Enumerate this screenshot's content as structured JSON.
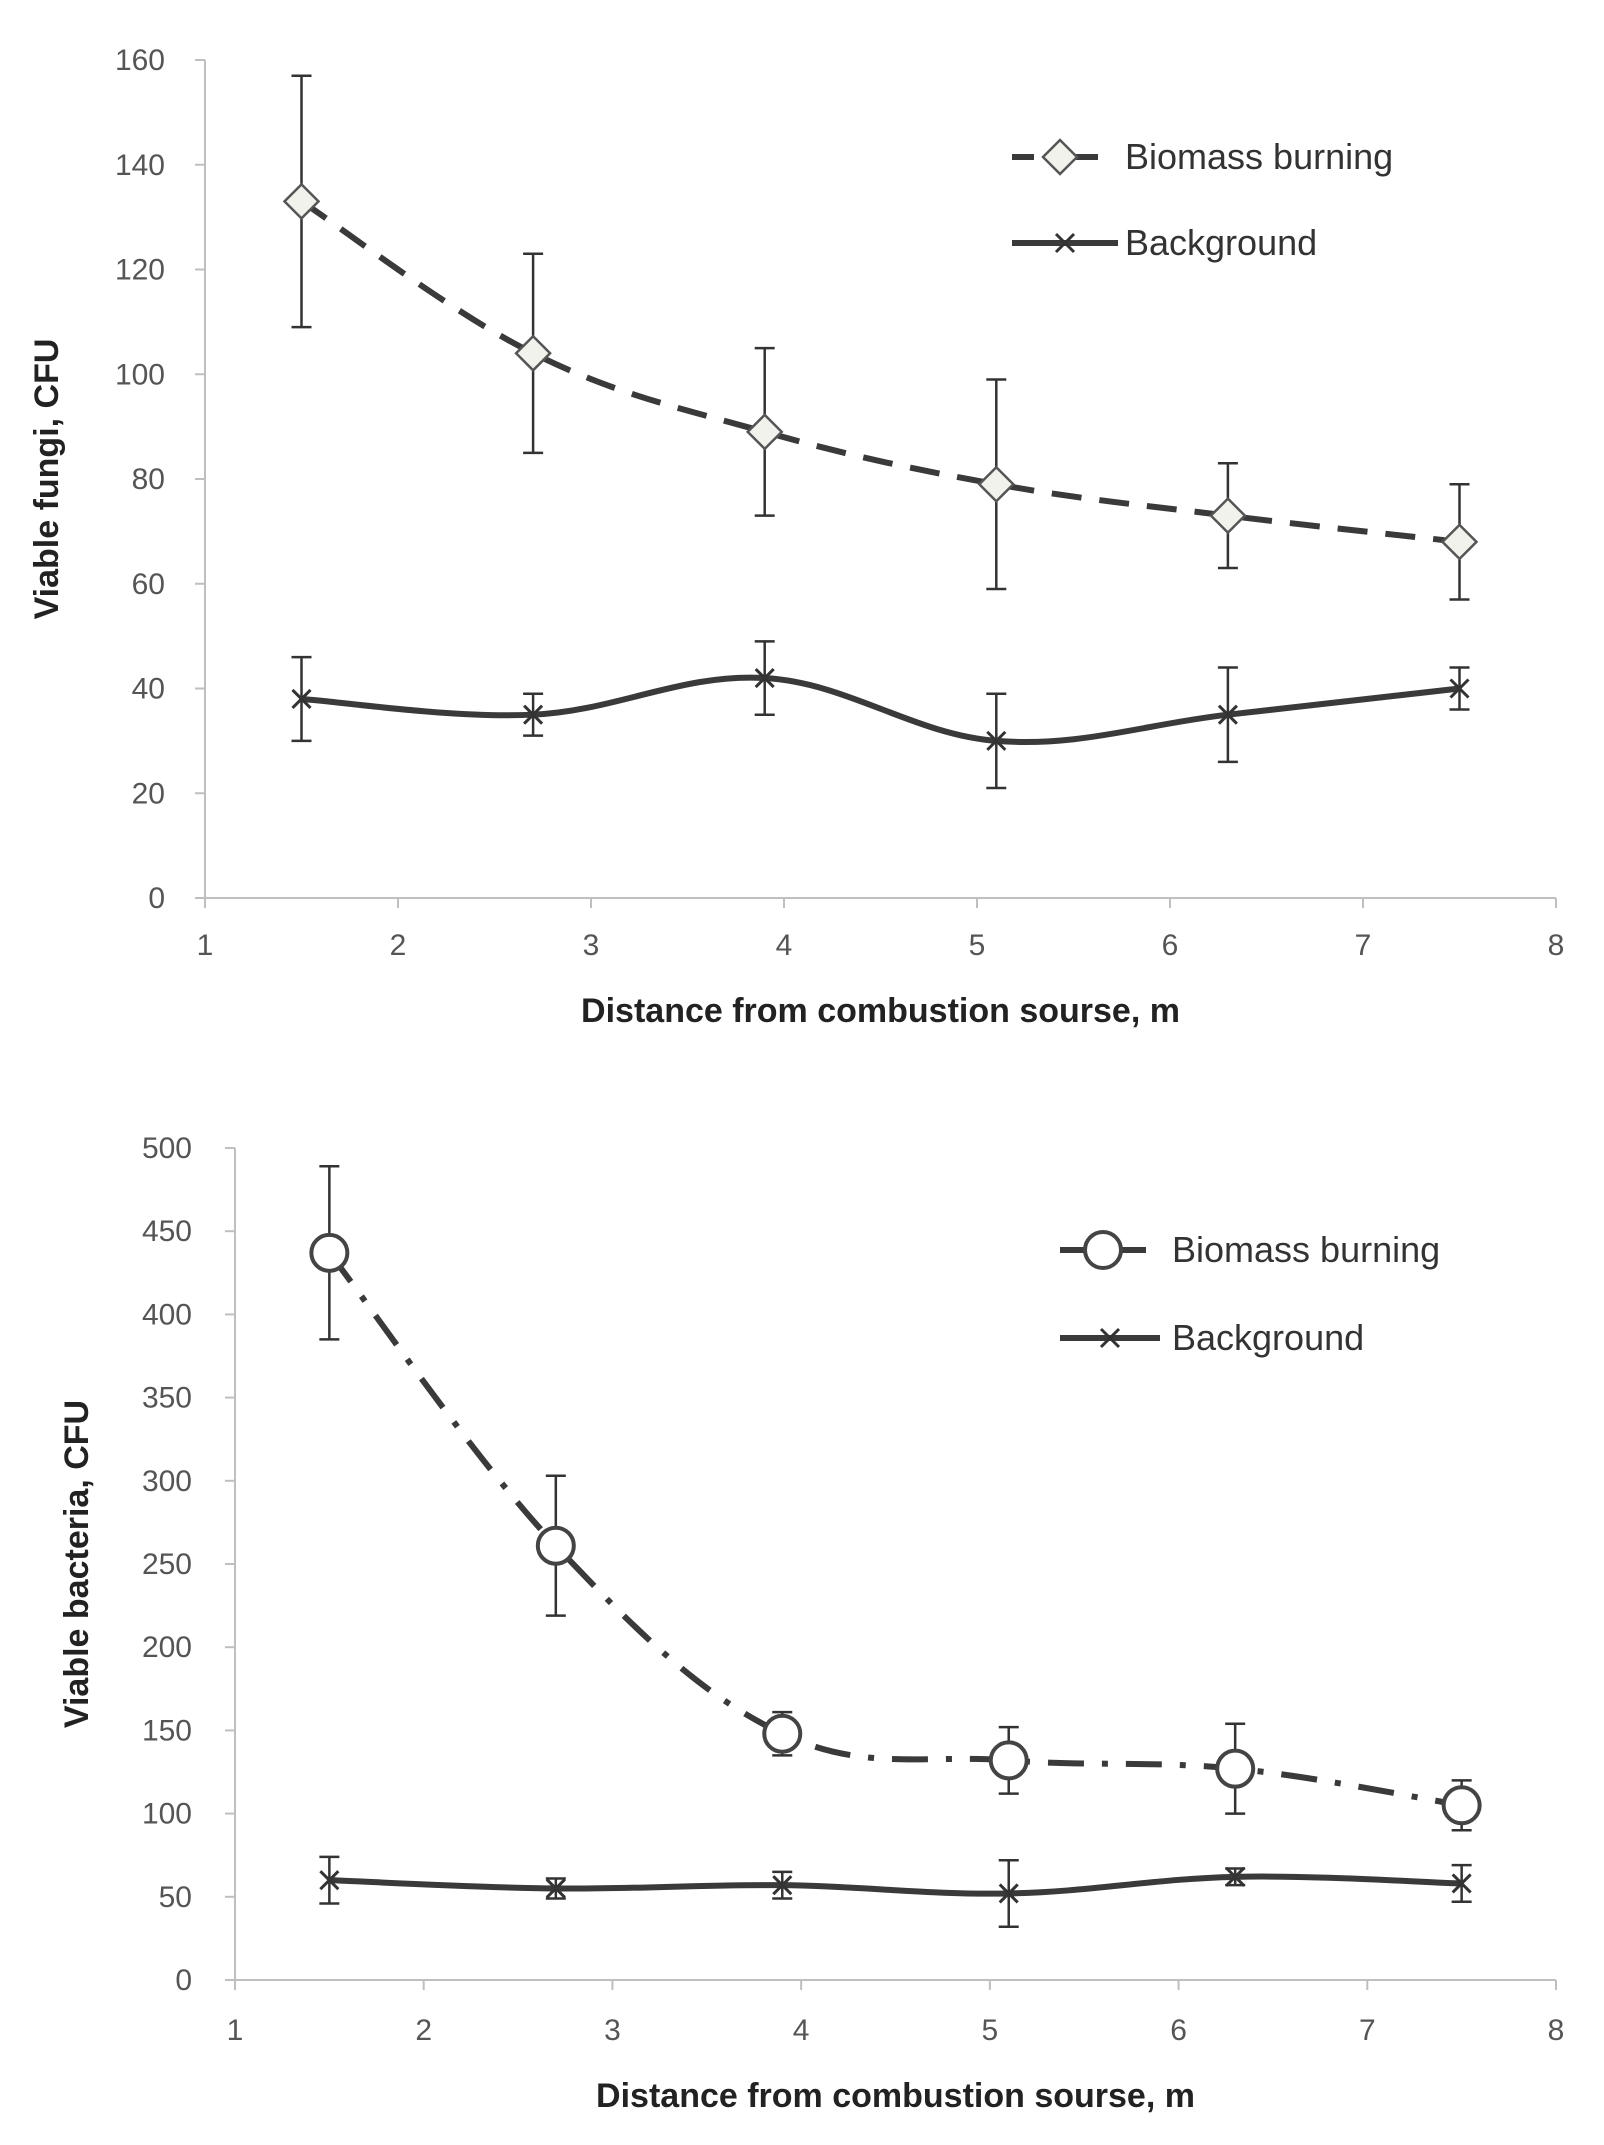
{
  "chart_data": [
    {
      "type": "line",
      "title": "",
      "xlabel": "Distance from combustion sourse, m",
      "ylabel": "Viable fungi, CFU",
      "xlim": [
        1,
        8
      ],
      "ylim": [
        0,
        160
      ],
      "x_ticks": [
        "1",
        "2",
        "3",
        "4",
        "5",
        "6",
        "7",
        "8"
      ],
      "y_ticks": [
        "0",
        "20",
        "40",
        "60",
        "80",
        "100",
        "120",
        "140",
        "160"
      ],
      "grid": false,
      "legend_position": "top-right",
      "series": [
        {
          "name": "Biomass burning",
          "marker": "diamond",
          "line_style": "dashed",
          "x": [
            1.5,
            2.7,
            3.9,
            5.1,
            6.3,
            7.5
          ],
          "values": [
            133,
            104,
            89,
            79,
            73,
            68
          ],
          "error": [
            24,
            19,
            16,
            20,
            10,
            11
          ]
        },
        {
          "name": "Background",
          "marker": "x",
          "line_style": "solid",
          "x": [
            1.5,
            2.7,
            3.9,
            5.1,
            6.3,
            7.5
          ],
          "values": [
            38,
            35,
            42,
            30,
            35,
            40
          ],
          "error": [
            8,
            4,
            7,
            9,
            9,
            4
          ]
        }
      ]
    },
    {
      "type": "line",
      "title": "",
      "xlabel": "Distance from combustion sourse, m",
      "ylabel": "Viable bacteria, CFU",
      "xlim": [
        1,
        8
      ],
      "ylim": [
        0,
        500
      ],
      "x_ticks": [
        "1",
        "2",
        "3",
        "4",
        "5",
        "6",
        "7",
        "8"
      ],
      "y_ticks": [
        "0",
        "50",
        "100",
        "150",
        "200",
        "250",
        "300",
        "350",
        "400",
        "450",
        "500"
      ],
      "grid": false,
      "legend_position": "top-right",
      "series": [
        {
          "name": "Biomass burning",
          "marker": "circle",
          "line_style": "dash-dot",
          "x": [
            1.5,
            2.7,
            3.9,
            5.1,
            6.3,
            7.5
          ],
          "values": [
            437,
            261,
            148,
            132,
            127,
            105
          ],
          "error": [
            52,
            42,
            13,
            20,
            27,
            15
          ]
        },
        {
          "name": "Background",
          "marker": "x",
          "line_style": "solid",
          "x": [
            1.5,
            2.7,
            3.9,
            5.1,
            6.3,
            7.5
          ],
          "values": [
            60,
            55,
            57,
            52,
            62,
            58
          ],
          "error": [
            14,
            6,
            8,
            20,
            5,
            11
          ]
        }
      ]
    }
  ]
}
